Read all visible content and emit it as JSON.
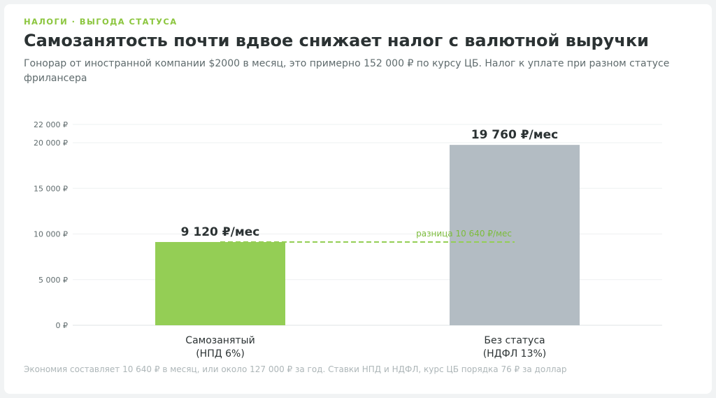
{
  "header": {
    "kicker": "НАЛОГИ · ВЫГОДА СТАТУСА",
    "title": "Самозанятость почти вдвое снижает налог с валютной выручки",
    "subtitle": "Гонорар от иностранной компании $2000 в месяц, это примерно 152 000 ₽ по курсу ЦБ. Налог к уплате при разном статусе фрилансера"
  },
  "footnote": "Экономия составляет 10 640 ₽ в месяц, или около 127 000 ₽ за год. Ставки НПД и НДФЛ, курс ЦБ порядка 76 ₽ за доллар",
  "colors": {
    "accent": "#94ce55",
    "neutral_bar": "#b3bcc3",
    "kicker": "#8cc63f",
    "title": "#2b3233"
  },
  "chart_data": {
    "type": "bar",
    "categories": [
      [
        "Самозанятый",
        "(НПД 6%)"
      ],
      [
        "Без статуса",
        "(НДФЛ 13%)"
      ]
    ],
    "values": [
      9120,
      19760
    ],
    "value_labels": [
      "9 120 ₽/мес",
      "19 760 ₽/мес"
    ],
    "bar_colors": [
      "#94ce55",
      "#b3bcc3"
    ],
    "ylim": [
      0,
      22000
    ],
    "y_ticks": [
      {
        "value": 0,
        "label": "0 ₽"
      },
      {
        "value": 5000,
        "label": "5 000 ₽"
      },
      {
        "value": 10000,
        "label": "10 000 ₽"
      },
      {
        "value": 15000,
        "label": "15 000 ₽"
      },
      {
        "value": 20000,
        "label": "20 000 ₽"
      },
      {
        "value": 22000,
        "label": "22 000 ₽"
      }
    ],
    "grid": true,
    "reference_line": {
      "value": 9120,
      "label": "разница 10 640 ₽/мес",
      "style": "dashed"
    }
  }
}
